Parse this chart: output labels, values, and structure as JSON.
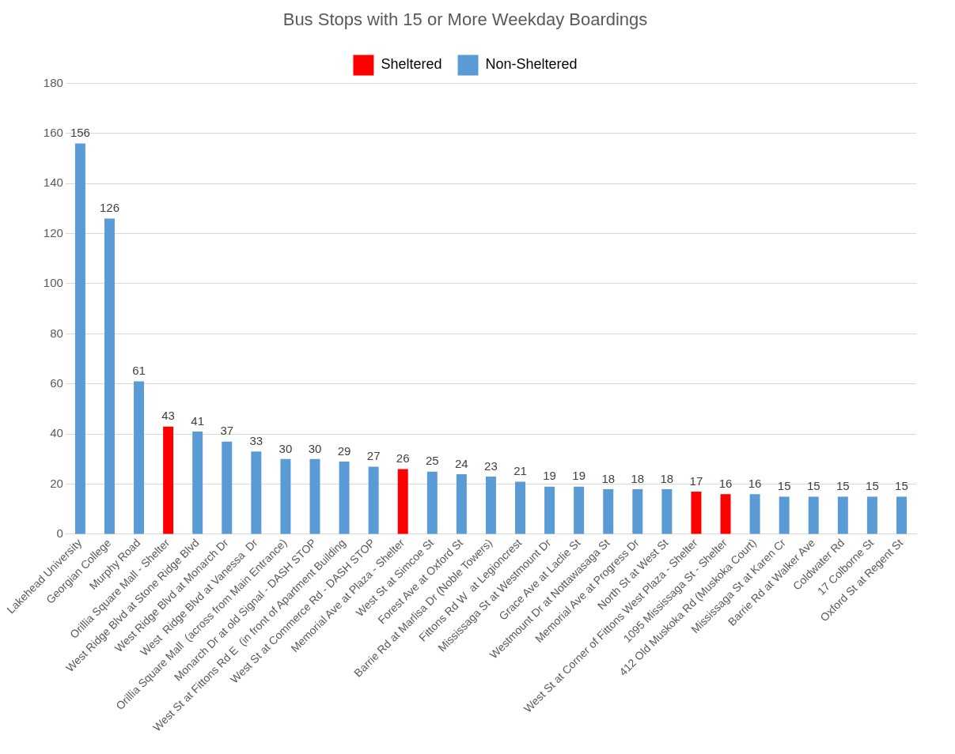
{
  "chart_data": {
    "type": "bar",
    "title": "Bus Stops with 15 or More Weekday Boardings",
    "categories": [
      "Lakehead University",
      "Georgian College",
      "Murphy Road",
      "Orillia Square Mall - Shelter",
      "West Ridge Blvd at Stone Ridge Blvd",
      "West Ridge Blvd at Monarch Dr",
      "West  Ridge Blvd at Vanessa  Dr",
      "Orillia Square Mall  (across from Main Entrance)",
      "Monarch Dr at old Signal - DASH STOP",
      "West St at Fittons Rd E  (in front of Apartment Building",
      "West St at Commerce Rd - DASH STOP",
      "Memorial Ave at Plaza - Shelter",
      "West St at Simcoe St",
      "Forest Ave at Oxford St",
      "Barrie Rd at Marlisa Dr (Noble Towers)",
      "Fittons Rd W  at Legioncrest",
      "Mississaga St at Westmount Dr",
      "Grace Ave at Laclie St",
      "Westmount Dr at Nottawasaga St",
      "Memorial Ave at Progress Dr",
      "North St at West St",
      "West St at Corner of Fittons West Plaza - Shelter",
      "1095 Mississaga St - Shelter",
      "412 Old Muskoka Rd (Muskoka Court)",
      "Mississaga St at Karen Cr",
      "Barrie Rd at Walker Ave",
      "Coldwater Rd",
      "17 Colborne St",
      "Oxford St at Regent St"
    ],
    "series": [
      {
        "name": "Sheltered",
        "color": "#ff0000",
        "values": [
          null,
          null,
          null,
          43,
          null,
          null,
          null,
          null,
          null,
          null,
          null,
          26,
          null,
          null,
          null,
          null,
          null,
          null,
          null,
          null,
          null,
          17,
          16,
          null,
          null,
          null,
          null,
          null,
          null
        ]
      },
      {
        "name": "Non-Sheltered",
        "color": "#5b9bd5",
        "values": [
          156,
          126,
          61,
          null,
          41,
          37,
          33,
          30,
          30,
          29,
          27,
          null,
          25,
          24,
          23,
          21,
          19,
          19,
          18,
          18,
          18,
          null,
          null,
          16,
          15,
          15,
          15,
          15,
          15
        ]
      }
    ],
    "ylim": [
      0,
      180
    ],
    "yticks": [
      0,
      20,
      40,
      60,
      80,
      100,
      120,
      140,
      160,
      180
    ],
    "grid": "y",
    "legend": "top",
    "data_labels": true
  }
}
